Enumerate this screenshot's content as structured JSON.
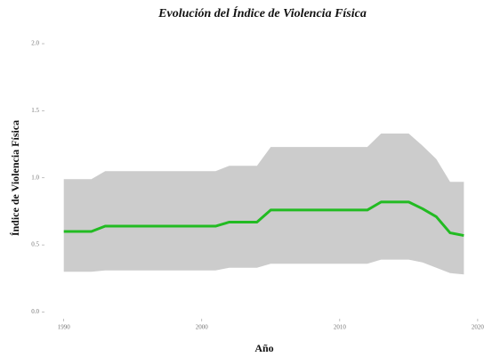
{
  "chart_data": {
    "type": "line",
    "title": "Evolución del Índice de Violencia Física",
    "x_label": "Año",
    "y_label": "Índice de Violencia Física",
    "x": [
      1990,
      1991,
      1992,
      1993,
      1994,
      1995,
      1996,
      1997,
      1998,
      1999,
      2000,
      2001,
      2002,
      2003,
      2004,
      2005,
      2006,
      2007,
      2008,
      2009,
      2010,
      2011,
      2012,
      2013,
      2014,
      2015,
      2016,
      2017,
      2018,
      2019
    ],
    "values": [
      0.6,
      0.6,
      0.6,
      0.64,
      0.64,
      0.64,
      0.64,
      0.64,
      0.64,
      0.64,
      0.64,
      0.64,
      0.67,
      0.67,
      0.67,
      0.76,
      0.76,
      0.76,
      0.76,
      0.76,
      0.76,
      0.76,
      0.76,
      0.82,
      0.82,
      0.82,
      0.77,
      0.71,
      0.59,
      0.57
    ],
    "upper": [
      0.99,
      0.99,
      0.99,
      1.05,
      1.05,
      1.05,
      1.05,
      1.05,
      1.05,
      1.05,
      1.05,
      1.05,
      1.09,
      1.09,
      1.09,
      1.23,
      1.23,
      1.23,
      1.23,
      1.23,
      1.23,
      1.23,
      1.23,
      1.33,
      1.33,
      1.33,
      1.24,
      1.14,
      0.97,
      0.97
    ],
    "lower": [
      0.3,
      0.3,
      0.3,
      0.31,
      0.31,
      0.31,
      0.31,
      0.31,
      0.31,
      0.31,
      0.31,
      0.31,
      0.33,
      0.33,
      0.33,
      0.36,
      0.36,
      0.36,
      0.36,
      0.36,
      0.36,
      0.36,
      0.36,
      0.39,
      0.39,
      0.39,
      0.37,
      0.33,
      0.29,
      0.28
    ],
    "color": "#22bb22",
    "band_color": "#cccccc",
    "xlim": [
      1988.6,
      2020.2
    ],
    "ylim": [
      -0.05,
      2.06
    ],
    "xticks": [
      1990,
      2000,
      2010,
      2020
    ],
    "yticks": [
      {
        "value": 0,
        "label": "0.0"
      },
      0.5,
      {
        "value": 1,
        "label": "1.0"
      },
      1.5,
      {
        "value": 2,
        "label": "2.0"
      }
    ]
  }
}
